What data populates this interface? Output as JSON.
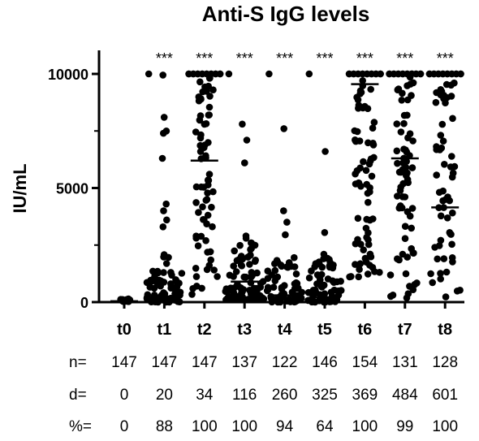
{
  "chart_data": {
    "type": "scatter",
    "title": "Anti-S IgG levels",
    "ylabel": "IU/mL",
    "xlabel": "",
    "ylim": [
      0,
      10000
    ],
    "yticks": [
      0,
      5000,
      10000
    ],
    "grid": false,
    "categories": [
      "t0",
      "t1",
      "t2",
      "t3",
      "t4",
      "t5",
      "t6",
      "t7",
      "t8"
    ],
    "significance": [
      "",
      "***",
      "***",
      "***",
      "***",
      "***",
      "***",
      "***",
      "***"
    ],
    "medians": [
      40,
      250,
      6200,
      900,
      300,
      200,
      9550,
      6300,
      4150
    ],
    "stats": {
      "n_label": "n=",
      "n": [
        "147",
        "147",
        "147",
        "137",
        "122",
        "146",
        "154",
        "131",
        "128"
      ],
      "d_label": "d=",
      "d": [
        "0",
        "20",
        "34",
        "116",
        "260",
        "325",
        "369",
        "484",
        "601"
      ],
      "pct_label": "%=",
      "pct": [
        "0",
        "88",
        "100",
        "100",
        "94",
        "64",
        "100",
        "99",
        "100"
      ]
    },
    "point_color": "#000000",
    "series_outliers": [
      [],
      [
        10000,
        9950,
        8100,
        7500,
        7400,
        6300,
        4300,
        4000,
        3600,
        3300
      ],
      [
        10000,
        10000,
        10000,
        10000,
        10000,
        10000,
        10000,
        10000,
        10000,
        10000,
        10000,
        10000,
        10000,
        10000,
        10000,
        10000
      ],
      [
        10000,
        7800,
        7100,
        6100,
        2900,
        2800
      ],
      [
        10000,
        7600,
        4000,
        3500,
        2950
      ],
      [
        10000,
        6600,
        3050,
        2100,
        1900
      ],
      [
        10000,
        10000,
        10000,
        10000,
        10000,
        10000,
        10000,
        10000,
        10000,
        10000,
        10000,
        10000,
        10000,
        10000,
        10000,
        10000
      ],
      [
        10000,
        10000,
        10000,
        10000,
        10000,
        10000,
        10000,
        10000,
        10000,
        10000,
        10000,
        10000,
        10000,
        10000,
        10000,
        10000
      ],
      [
        10000,
        10000,
        10000,
        10000,
        10000,
        10000,
        10000,
        10000,
        10000,
        10000,
        10000,
        10000,
        10000,
        10000,
        10000,
        10000
      ]
    ]
  }
}
